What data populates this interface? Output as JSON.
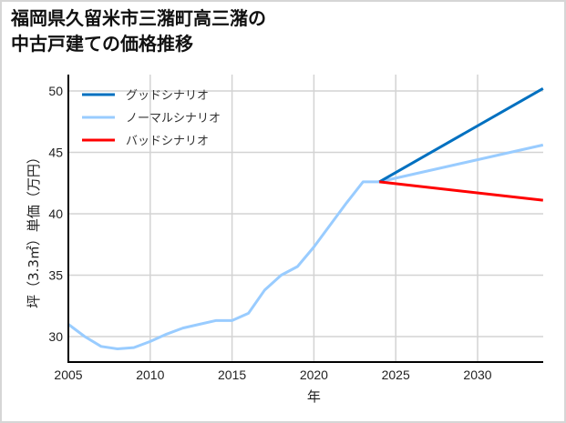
{
  "title_line1": "福岡県久留米市三潴町高三潴の",
  "title_line2": "中古戸建ての価格推移",
  "chart_data": {
    "type": "line",
    "title": "福岡県久留米市三潴町高三潴の中古戸建ての価格推移",
    "xlabel": "年",
    "ylabel": "坪（3.3㎡）単価（万円）",
    "xlim": [
      2005,
      2034
    ],
    "ylim": [
      28,
      51.5
    ],
    "xticks": [
      2005,
      2010,
      2015,
      2020,
      2025,
      2030
    ],
    "yticks": [
      30,
      35,
      40,
      45,
      50
    ],
    "grid": true,
    "legend_position": "upper left",
    "series": [
      {
        "name": "ノーマルシナリオ",
        "color": "#99ccff",
        "x": [
          2005,
          2006,
          2007,
          2008,
          2009,
          2010,
          2011,
          2012,
          2013,
          2014,
          2015,
          2016,
          2017,
          2018,
          2019,
          2020,
          2021,
          2022,
          2023,
          2024,
          2034
        ],
        "y": [
          31.0,
          30.0,
          29.2,
          29.0,
          29.1,
          29.6,
          30.2,
          30.7,
          31.0,
          31.3,
          31.3,
          31.9,
          33.8,
          35.0,
          35.7,
          37.3,
          39.1,
          40.9,
          42.6,
          42.6,
          45.6
        ]
      },
      {
        "name": "グッドシナリオ",
        "color": "#0070c0",
        "x": [
          2024,
          2034
        ],
        "y": [
          42.6,
          50.2
        ]
      },
      {
        "name": "バッドシナリオ",
        "color": "#ff0000",
        "x": [
          2024,
          2034
        ],
        "y": [
          42.6,
          41.1
        ]
      }
    ]
  },
  "legend": [
    {
      "label": "グッドシナリオ",
      "color": "#0070c0"
    },
    {
      "label": "ノーマルシナリオ",
      "color": "#99ccff"
    },
    {
      "label": "バッドシナリオ",
      "color": "#ff0000"
    }
  ]
}
